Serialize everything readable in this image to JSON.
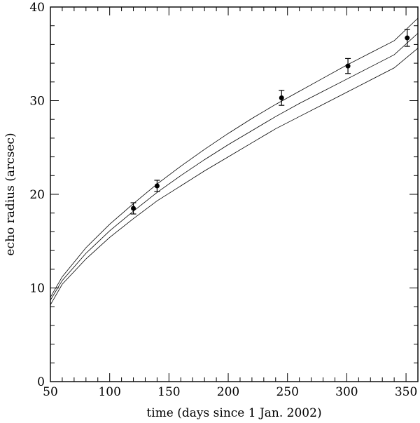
{
  "chart_data": {
    "type": "scatter",
    "title": "",
    "xlabel": "time (days since 1 Jan. 2002)",
    "ylabel": "echo radius (arcsec)",
    "xlim": [
      50,
      360
    ],
    "ylim": [
      0,
      40
    ],
    "x_ticks": [
      50,
      100,
      150,
      200,
      250,
      300,
      350
    ],
    "y_ticks": [
      0,
      10,
      20,
      30,
      40
    ],
    "x_minor_step": 10,
    "y_minor_step": 2,
    "grid": false,
    "points": [
      {
        "x": 120,
        "y": 18.5,
        "err": 0.6
      },
      {
        "x": 140,
        "y": 20.9,
        "err": 0.6
      },
      {
        "x": 245,
        "y": 30.3,
        "err": 0.8
      },
      {
        "x": 301,
        "y": 33.7,
        "err": 0.8
      },
      {
        "x": 351,
        "y": 36.7,
        "err": 0.9
      }
    ],
    "curves": [
      {
        "x": [
          50,
          60,
          80,
          100,
          120,
          140,
          160,
          180,
          200,
          220,
          240,
          260,
          280,
          300,
          320,
          340,
          360
        ],
        "y": [
          8.2,
          10.4,
          13.1,
          15.4,
          17.4,
          19.3,
          20.9,
          22.5,
          24.0,
          25.5,
          27.0,
          28.3,
          29.6,
          30.9,
          32.2,
          33.5,
          35.6
        ]
      },
      {
        "x": [
          50,
          60,
          80,
          100,
          120,
          140,
          160,
          180,
          200,
          220,
          240,
          260,
          280,
          300,
          320,
          340,
          360
        ],
        "y": [
          8.7,
          10.8,
          13.7,
          16.1,
          18.2,
          20.2,
          22.0,
          23.7,
          25.3,
          26.8,
          28.3,
          29.7,
          31.0,
          32.3,
          33.6,
          34.9,
          37.2
        ]
      },
      {
        "x": [
          50,
          60,
          80,
          100,
          120,
          140,
          160,
          180,
          200,
          220,
          240,
          260,
          280,
          300,
          320,
          340,
          360
        ],
        "y": [
          9.0,
          11.2,
          14.3,
          16.8,
          19.0,
          21.1,
          23.0,
          24.8,
          26.5,
          28.1,
          29.6,
          31.0,
          32.4,
          33.8,
          35.1,
          36.4,
          38.8
        ]
      }
    ]
  }
}
